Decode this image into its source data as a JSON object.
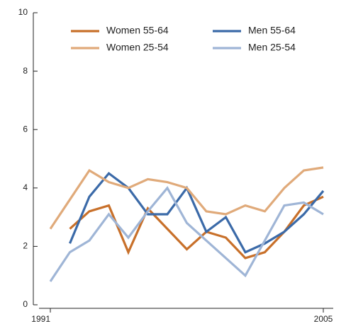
{
  "chart_data": {
    "type": "line",
    "x": [
      1991,
      1992,
      1993,
      1994,
      1995,
      1996,
      1997,
      1998,
      1999,
      2000,
      2001,
      2002,
      2003,
      2004,
      2005
    ],
    "xlim": [
      1991,
      2005
    ],
    "xticks": [
      1991,
      2005
    ],
    "ylim": [
      0,
      10
    ],
    "yticks": [
      0,
      2,
      4,
      6,
      8,
      10
    ],
    "series": [
      {
        "name": "Women 55-64",
        "color": "#c8702a",
        "values": [
          null,
          2.6,
          3.2,
          3.4,
          1.8,
          3.3,
          2.6,
          1.9,
          2.5,
          2.3,
          1.6,
          1.8,
          2.5,
          3.4,
          3.7
        ]
      },
      {
        "name": "Men 55-64",
        "color": "#3b6aa8",
        "values": [
          null,
          2.1,
          3.7,
          4.5,
          4.0,
          3.1,
          3.1,
          4.0,
          2.5,
          3.0,
          1.8,
          2.1,
          2.5,
          3.1,
          3.9
        ]
      },
      {
        "name": "Women 25-54",
        "color": "#e0aa7a",
        "values": [
          2.6,
          3.6,
          4.6,
          4.2,
          4.0,
          4.3,
          4.2,
          4.0,
          3.2,
          3.1,
          3.4,
          3.2,
          4.0,
          4.6,
          4.7
        ]
      },
      {
        "name": "Men 25-54",
        "color": "#9fb5d6",
        "values": [
          0.8,
          1.8,
          2.2,
          3.1,
          2.3,
          3.2,
          4.0,
          2.8,
          2.2,
          1.6,
          1.0,
          2.2,
          3.4,
          3.5,
          3.1
        ]
      }
    ]
  }
}
